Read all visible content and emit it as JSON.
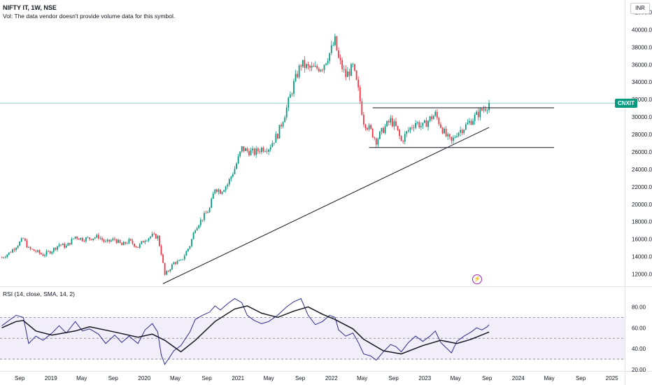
{
  "header": {
    "symbol_line": "NIFTY IT, 1W, NSE",
    "volume_note": "Vol: The data vendor doesn't provide volume data for this symbol."
  },
  "currency_button": "INR",
  "price_badge": {
    "label": "CNXIT",
    "color": "#089981"
  },
  "rsi_header": "RSI (14, close, SMA, 14, 2)",
  "alert_icon": "lightning-icon",
  "colors": {
    "up": "#089981",
    "down": "#f23645",
    "rsi_line": "#2b2b8c",
    "rsi_sma": "#131722",
    "rsi_band": "#ede7f6",
    "cursor_line": "#26a69a"
  },
  "chart_data": [
    {
      "type": "candlestick",
      "timeframe": "weekly",
      "x_axis": {
        "type": "date",
        "tick_labels": [
          "Sep",
          "2019",
          "May",
          "Sep",
          "2020",
          "May",
          "Sep",
          "2021",
          "May",
          "Sep",
          "2022",
          "May",
          "Sep",
          "2023",
          "May",
          "Sep",
          "2024",
          "May",
          "Sep",
          "2025"
        ],
        "tick_dates": [
          "2018-09-01",
          "2019-01-01",
          "2019-05-01",
          "2019-09-01",
          "2020-01-01",
          "2020-05-01",
          "2020-09-01",
          "2021-01-01",
          "2021-05-01",
          "2021-09-01",
          "2022-01-01",
          "2022-05-01",
          "2022-09-01",
          "2023-01-01",
          "2023-05-01",
          "2023-09-01",
          "2024-01-01",
          "2024-05-01",
          "2024-09-01",
          "2025-01-01"
        ]
      },
      "y_axis": {
        "ticks": [
          "12000.00",
          "14000.00",
          "16000.00",
          "18000.00",
          "20000.00",
          "22000.00",
          "24000.00",
          "26000.00",
          "28000.00",
          "30000.00",
          "32000.00",
          "34000.00",
          "36000.00",
          "38000.00",
          "40000.00",
          "42000.00"
        ],
        "ylim": [
          10600,
          43400
        ]
      },
      "close_series": [
        [
          "2018-06-23",
          13900
        ],
        [
          "2018-07-21",
          14400
        ],
        [
          "2018-08-18",
          15200
        ],
        [
          "2018-09-15",
          16050
        ],
        [
          "2018-10-06",
          14900
        ],
        [
          "2018-11-03",
          14600
        ],
        [
          "2018-12-01",
          14200
        ],
        [
          "2019-01-05",
          14700
        ],
        [
          "2019-02-02",
          15400
        ],
        [
          "2019-03-02",
          15150
        ],
        [
          "2019-04-06",
          16300
        ],
        [
          "2019-05-04",
          16000
        ],
        [
          "2019-06-01",
          16100
        ],
        [
          "2019-07-06",
          16300
        ],
        [
          "2019-08-03",
          15600
        ],
        [
          "2019-09-07",
          16000
        ],
        [
          "2019-10-05",
          15300
        ],
        [
          "2019-11-02",
          15800
        ],
        [
          "2019-12-07",
          15100
        ],
        [
          "2020-01-04",
          16000
        ],
        [
          "2020-02-01",
          16400
        ],
        [
          "2020-02-22",
          16250
        ],
        [
          "2020-03-07",
          14400
        ],
        [
          "2020-03-21",
          11900
        ],
        [
          "2020-04-04",
          12400
        ],
        [
          "2020-04-25",
          13300
        ],
        [
          "2020-05-23",
          13450
        ],
        [
          "2020-06-27",
          15300
        ],
        [
          "2020-07-18",
          17300
        ],
        [
          "2020-08-15",
          18400
        ],
        [
          "2020-09-12",
          19500
        ],
        [
          "2020-10-03",
          21900
        ],
        [
          "2020-10-24",
          21500
        ],
        [
          "2020-11-21",
          22300
        ],
        [
          "2020-12-19",
          24100
        ],
        [
          "2021-01-16",
          26400
        ],
        [
          "2021-02-06",
          26100
        ],
        [
          "2021-03-06",
          25900
        ],
        [
          "2021-04-03",
          26400
        ],
        [
          "2021-05-01",
          26500
        ],
        [
          "2021-06-05",
          28000
        ],
        [
          "2021-07-10",
          31000
        ],
        [
          "2021-08-07",
          33800
        ],
        [
          "2021-09-04",
          36100
        ],
        [
          "2021-10-02",
          35600
        ],
        [
          "2021-10-30",
          35500
        ],
        [
          "2021-11-27",
          35800
        ],
        [
          "2021-12-25",
          37300
        ],
        [
          "2022-01-15",
          38700
        ],
        [
          "2022-01-29",
          36600
        ],
        [
          "2022-02-26",
          34700
        ],
        [
          "2022-03-26",
          35700
        ],
        [
          "2022-04-16",
          33000
        ],
        [
          "2022-05-07",
          29500
        ],
        [
          "2022-06-04",
          28400
        ],
        [
          "2022-06-25",
          27300
        ],
        [
          "2022-07-23",
          28600
        ],
        [
          "2022-08-20",
          29600
        ],
        [
          "2022-09-10",
          28800
        ],
        [
          "2022-10-01",
          27200
        ],
        [
          "2022-10-29",
          28500
        ],
        [
          "2022-11-26",
          29400
        ],
        [
          "2022-12-24",
          28900
        ],
        [
          "2023-01-21",
          29800
        ],
        [
          "2023-02-11",
          30300
        ],
        [
          "2023-03-04",
          29000
        ],
        [
          "2023-03-25",
          27800
        ],
        [
          "2023-04-15",
          27100
        ],
        [
          "2023-05-06",
          28200
        ],
        [
          "2023-06-03",
          28800
        ],
        [
          "2023-07-01",
          29600
        ],
        [
          "2023-07-22",
          30200
        ],
        [
          "2023-08-12",
          30800
        ],
        [
          "2023-09-02",
          31300
        ],
        [
          "2023-09-09",
          31600
        ]
      ],
      "lines": [
        {
          "name": "",
          "kind": "trendline",
          "points": [
            [
              "2020-03-14",
              10900
            ],
            [
              "2023-09-09",
              28800
            ]
          ]
        },
        {
          "name": "",
          "kind": "resistance",
          "points": [
            [
              "2022-06-11",
              31050
            ],
            [
              "2024-05-20",
              31050
            ]
          ]
        },
        {
          "name": "",
          "kind": "support",
          "points": [
            [
              "2022-05-28",
              26500
            ],
            [
              "2024-05-20",
              26500
            ]
          ]
        }
      ],
      "last_price_label": "CNXIT"
    },
    {
      "type": "line",
      "title": "RSI (14, close, SMA, 14, 2)",
      "y_axis": {
        "ticks": [
          "20.00",
          "40.00",
          "60.00",
          "80.00"
        ],
        "ylim": [
          20,
          87
        ],
        "band": [
          30,
          70
        ],
        "midline": 50
      },
      "series": [
        {
          "name": "",
          "color": "#2b2b8c",
          "points": [
            [
              "2018-06-23",
              62
            ],
            [
              "2018-07-21",
              67
            ],
            [
              "2018-08-18",
              72
            ],
            [
              "2018-09-15",
              70
            ],
            [
              "2018-10-06",
              45
            ],
            [
              "2018-11-03",
              52
            ],
            [
              "2018-12-01",
              48
            ],
            [
              "2019-01-05",
              55
            ],
            [
              "2019-02-02",
              62
            ],
            [
              "2019-03-02",
              55
            ],
            [
              "2019-04-06",
              66
            ],
            [
              "2019-05-04",
              57
            ],
            [
              "2019-06-01",
              59
            ],
            [
              "2019-07-06",
              54
            ],
            [
              "2019-08-03",
              45
            ],
            [
              "2019-09-07",
              53
            ],
            [
              "2019-10-05",
              46
            ],
            [
              "2019-11-02",
              52
            ],
            [
              "2019-12-07",
              45
            ],
            [
              "2020-01-04",
              58
            ],
            [
              "2020-02-01",
              64
            ],
            [
              "2020-02-22",
              56
            ],
            [
              "2020-03-07",
              34
            ],
            [
              "2020-03-21",
              25
            ],
            [
              "2020-04-04",
              30
            ],
            [
              "2020-04-25",
              38
            ],
            [
              "2020-05-23",
              43
            ],
            [
              "2020-06-27",
              56
            ],
            [
              "2020-07-18",
              68
            ],
            [
              "2020-08-15",
              72
            ],
            [
              "2020-09-12",
              75
            ],
            [
              "2020-10-03",
              81
            ],
            [
              "2020-10-24",
              77
            ],
            [
              "2020-11-21",
              83
            ],
            [
              "2020-12-19",
              88
            ],
            [
              "2021-01-16",
              84
            ],
            [
              "2021-02-06",
              72
            ],
            [
              "2021-03-06",
              67
            ],
            [
              "2021-04-03",
              64
            ],
            [
              "2021-05-01",
              66
            ],
            [
              "2021-06-05",
              72
            ],
            [
              "2021-07-10",
              80
            ],
            [
              "2021-08-07",
              85
            ],
            [
              "2021-09-04",
              88
            ],
            [
              "2021-10-02",
              72
            ],
            [
              "2021-10-30",
              63
            ],
            [
              "2021-11-27",
              66
            ],
            [
              "2021-12-25",
              72
            ],
            [
              "2022-01-15",
              70
            ],
            [
              "2022-01-29",
              58
            ],
            [
              "2022-02-26",
              52
            ],
            [
              "2022-03-26",
              55
            ],
            [
              "2022-04-16",
              46
            ],
            [
              "2022-05-07",
              35
            ],
            [
              "2022-06-04",
              33
            ],
            [
              "2022-06-25",
              29
            ],
            [
              "2022-07-23",
              37
            ],
            [
              "2022-08-20",
              44
            ],
            [
              "2022-09-10",
              42
            ],
            [
              "2022-10-01",
              37
            ],
            [
              "2022-10-29",
              46
            ],
            [
              "2022-11-26",
              52
            ],
            [
              "2022-12-24",
              47
            ],
            [
              "2023-01-21",
              52
            ],
            [
              "2023-02-11",
              57
            ],
            [
              "2023-03-04",
              46
            ],
            [
              "2023-03-25",
              41
            ],
            [
              "2023-04-15",
              36
            ],
            [
              "2023-05-06",
              47
            ],
            [
              "2023-06-03",
              52
            ],
            [
              "2023-07-01",
              56
            ],
            [
              "2023-07-22",
              60
            ],
            [
              "2023-08-12",
              58
            ],
            [
              "2023-09-02",
              61
            ],
            [
              "2023-09-09",
              63
            ]
          ]
        },
        {
          "name": "",
          "color": "#131722",
          "points": [
            [
              "2018-06-23",
              60
            ],
            [
              "2018-08-18",
              66
            ],
            [
              "2018-09-15",
              67
            ],
            [
              "2018-11-03",
              57
            ],
            [
              "2019-01-05",
              53
            ],
            [
              "2019-04-06",
              57
            ],
            [
              "2019-06-01",
              61
            ],
            [
              "2019-09-07",
              56
            ],
            [
              "2019-12-07",
              51
            ],
            [
              "2020-02-01",
              54
            ],
            [
              "2020-03-21",
              48
            ],
            [
              "2020-05-23",
              37
            ],
            [
              "2020-07-18",
              48
            ],
            [
              "2020-10-03",
              66
            ],
            [
              "2020-12-19",
              78
            ],
            [
              "2021-02-06",
              81
            ],
            [
              "2021-04-03",
              74
            ],
            [
              "2021-06-05",
              70
            ],
            [
              "2021-08-07",
              76
            ],
            [
              "2021-10-02",
              80
            ],
            [
              "2021-11-27",
              73
            ],
            [
              "2022-01-15",
              68
            ],
            [
              "2022-03-26",
              59
            ],
            [
              "2022-05-07",
              49
            ],
            [
              "2022-07-23",
              38
            ],
            [
              "2022-10-01",
              35
            ],
            [
              "2022-12-24",
              43
            ],
            [
              "2023-03-04",
              48
            ],
            [
              "2023-05-06",
              45
            ],
            [
              "2023-07-01",
              49
            ],
            [
              "2023-09-09",
              56
            ]
          ]
        }
      ]
    }
  ]
}
